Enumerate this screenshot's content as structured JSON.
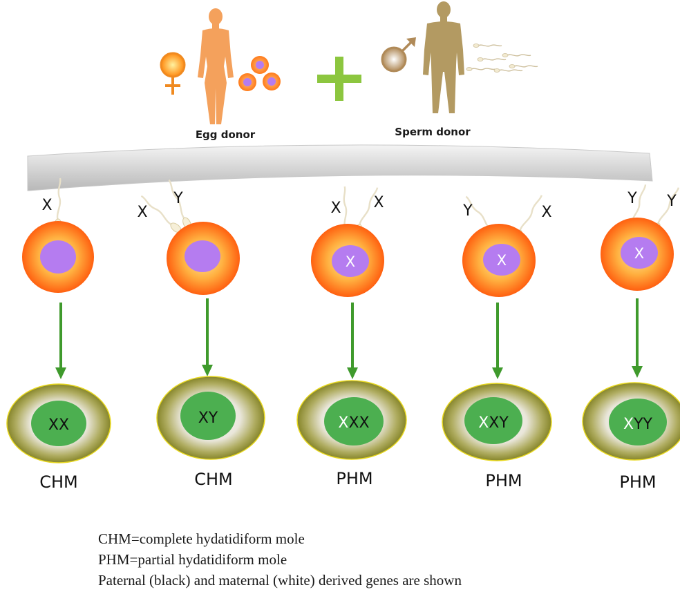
{
  "donors": {
    "egg_label": "Egg donor",
    "sperm_label": "Sperm donor"
  },
  "fertilizations": [
    {
      "sperm": [
        "X"
      ],
      "egg_nucleus": "",
      "result_maternal": "",
      "result_paternal": "XX",
      "type": "CHM"
    },
    {
      "sperm": [
        "X",
        "Y"
      ],
      "egg_nucleus": "",
      "result_maternal": "",
      "result_paternal": "XY",
      "type": "CHM"
    },
    {
      "sperm": [
        "X",
        "X"
      ],
      "egg_nucleus": "X",
      "result_maternal": "X",
      "result_paternal": "XX",
      "type": "PHM"
    },
    {
      "sperm": [
        "Y",
        "X"
      ],
      "egg_nucleus": "X",
      "result_maternal": "X",
      "result_paternal": "XY",
      "type": "PHM"
    },
    {
      "sperm": [
        "Y",
        "Y"
      ],
      "egg_nucleus": "X",
      "result_maternal": "X",
      "result_paternal": "YY",
      "type": "PHM"
    }
  ],
  "legend": {
    "line1": "CHM=complete hydatidiform mole",
    "line2": "PHM=partial hydatidiform mole",
    "line3": "Paternal (black) and maternal (white) derived genes are shown"
  },
  "colors": {
    "egg_outer": "#ff6a10",
    "egg_inner": "#ffd070",
    "egg_nucleus": "#b57cf0",
    "arrow": "#3f9a2c",
    "mole_outer": "#8b8a2c",
    "mole_nucleus": "#4caf50",
    "plus": "#8cc63f",
    "female_figure": "#f4a15c",
    "male_figure": "#b39a62"
  }
}
